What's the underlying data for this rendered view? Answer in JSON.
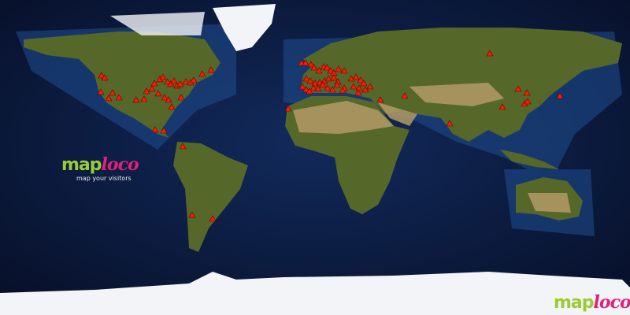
{
  "logo": {
    "part1": "map",
    "part2": "loco",
    "tagline": "map your visitors"
  },
  "colors": {
    "ocean": "#0b1a3d",
    "shelf": "#1d4a8a",
    "land": "#5a6b2a",
    "desert": "#b59a68",
    "ice": "#f2f4f8",
    "marker": "#ff1a00",
    "logo_green": "#9acd32",
    "logo_pink": "#e0207a"
  },
  "marker_icon": "red-triangle-icon",
  "visitors": [
    [
      -122,
      46.8
    ],
    [
      -120.2,
      45.5
    ],
    [
      -122.4,
      37.4
    ],
    [
      -117.9,
      33.8
    ],
    [
      -115.7,
      36.9
    ],
    [
      -112,
      34.2
    ],
    [
      -102.2,
      32.9
    ],
    [
      -97.7,
      33.3
    ],
    [
      -96.3,
      37.8
    ],
    [
      -93.2,
      39.2
    ],
    [
      -91.8,
      42.3
    ],
    [
      -88.7,
      44.6
    ],
    [
      -86.9,
      45.9
    ],
    [
      -84.2,
      43.2
    ],
    [
      -82.4,
      41.9
    ],
    [
      -80.6,
      43.7
    ],
    [
      -78.8,
      41
    ],
    [
      -77,
      41.9
    ],
    [
      -73.8,
      43.2
    ],
    [
      -71.1,
      42.8
    ],
    [
      -69.3,
      44.1
    ],
    [
      -64.4,
      47.7
    ],
    [
      -59.4,
      50
    ],
    [
      -89.6,
      36.5
    ],
    [
      -86,
      34.2
    ],
    [
      -83.7,
      32.9
    ],
    [
      -81.9,
      28.8
    ],
    [
      -76.5,
      34.2
    ],
    [
      -91.4,
      15.8
    ],
    [
      -86.4,
      15.3
    ],
    [
      -75.6,
      6.3
    ],
    [
      -70.2,
      -32.9
    ],
    [
      -58.5,
      -35.1
    ],
    [
      -7.7,
      54
    ],
    [
      -5.4,
      54
    ],
    [
      -2.3,
      53.1
    ],
    [
      -0.5,
      51.3
    ],
    [
      2.3,
      49.5
    ],
    [
      5,
      51.8
    ],
    [
      6.8,
      51.3
    ],
    [
      9,
      49.5
    ],
    [
      10.8,
      48.2
    ],
    [
      13.5,
      50.4
    ],
    [
      16.7,
      49.5
    ],
    [
      -4.95,
      45
    ],
    [
      -2.7,
      43.7
    ],
    [
      0,
      42.3
    ],
    [
      2.7,
      42.8
    ],
    [
      5.4,
      43.7
    ],
    [
      7.7,
      45
    ],
    [
      10.8,
      45.5
    ],
    [
      13.1,
      43.2
    ],
    [
      -7.2,
      40.5
    ],
    [
      -5,
      38.7
    ],
    [
      -3.2,
      37.8
    ],
    [
      -0.9,
      39.6
    ],
    [
      1.8,
      39.2
    ],
    [
      4.5,
      41.4
    ],
    [
      7.2,
      39.6
    ],
    [
      9.9,
      38.7
    ],
    [
      12.6,
      41.4
    ],
    [
      16.7,
      39.6
    ],
    [
      20.7,
      45
    ],
    [
      23.4,
      45.9
    ],
    [
      26.1,
      44.1
    ],
    [
      27.9,
      42.3
    ],
    [
      22,
      40.5
    ],
    [
      25.2,
      39.6
    ],
    [
      28.8,
      38.7
    ],
    [
      31.5,
      40.5
    ],
    [
      15.75,
      38.25
    ],
    [
      24.75,
      36.9
    ],
    [
      37.35,
      32.85
    ],
    [
      51.3,
      35.1
    ],
    [
      -15.3,
      27.9
    ],
    [
      99.9,
      59.4
    ],
    [
      76.95,
      19.35
    ],
    [
      107.1,
      28.8
    ],
    [
      116.1,
      39.15
    ],
    [
      121.05,
      36.9
    ],
    [
      119.7,
      30.6
    ],
    [
      121.5,
      31.95
    ],
    [
      139.95,
      35.1
    ]
  ]
}
